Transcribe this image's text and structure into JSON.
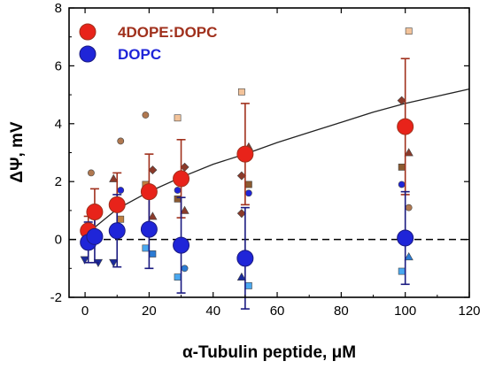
{
  "chart_data": {
    "type": "scatter",
    "xlabel": "α-Tubulin peptide, μM",
    "ylabel": "ΔΨ, mV",
    "xlim": [
      -5,
      120
    ],
    "ylim": [
      -2,
      8
    ],
    "xticks": [
      "0",
      "20",
      "40",
      "60",
      "80",
      "100",
      "120"
    ],
    "yticks": [
      "-2",
      "0",
      "2",
      "4",
      "6",
      "8"
    ],
    "grid": false,
    "legend_position": "top-left",
    "zero_line": {
      "y": 0,
      "style": "dashed"
    },
    "fit_curve": {
      "x": [
        0,
        10,
        20,
        30,
        40,
        50,
        60,
        70,
        80,
        90,
        100,
        110,
        120
      ],
      "y": [
        0.15,
        1.05,
        1.65,
        2.15,
        2.6,
        2.95,
        3.35,
        3.7,
        4.05,
        4.4,
        4.7,
        4.95,
        5.2
      ]
    },
    "series": [
      {
        "name": "4DOPE:DOPC",
        "color": "#e8231a",
        "edge": "#a0301c",
        "x": [
          1,
          3,
          10,
          20,
          30,
          50,
          100
        ],
        "y": [
          0.3,
          0.95,
          1.2,
          1.65,
          2.1,
          2.95,
          3.9
        ],
        "err": [
          0.5,
          0.8,
          1.1,
          1.3,
          1.35,
          1.75,
          2.35
        ]
      },
      {
        "name": "DOPC",
        "color": "#1f25d8",
        "edge": "#1a1a80",
        "x": [
          1,
          3,
          10,
          20,
          30,
          50,
          100
        ],
        "y": [
          -0.1,
          0.1,
          0.3,
          0.35,
          -0.2,
          -0.65,
          0.05
        ],
        "err": [
          0.7,
          0.9,
          1.25,
          1.35,
          1.65,
          1.75,
          1.6
        ]
      }
    ],
    "individual_points": [
      {
        "x": 3,
        "y": 2.3,
        "shape": "circle",
        "color": "#b07850"
      },
      {
        "x": 10,
        "y": 3.4,
        "shape": "circle",
        "color": "#b07850"
      },
      {
        "x": 10,
        "y": 2.1,
        "shape": "triangle",
        "color": "#8b3a2a"
      },
      {
        "x": 10,
        "y": 0.7,
        "shape": "square",
        "color": "#c08040"
      },
      {
        "x": 20,
        "y": 4.3,
        "shape": "circle",
        "color": "#b07850"
      },
      {
        "x": 20,
        "y": 2.4,
        "shape": "diamond",
        "color": "#8b3a2a"
      },
      {
        "x": 20,
        "y": 1.9,
        "shape": "square",
        "color": "#c08040"
      },
      {
        "x": 20,
        "y": 0.8,
        "shape": "triangle",
        "color": "#8b3a2a"
      },
      {
        "x": 30,
        "y": 4.2,
        "shape": "square",
        "color": "#f3c39a"
      },
      {
        "x": 30,
        "y": 2.5,
        "shape": "diamond",
        "color": "#8b3a2a"
      },
      {
        "x": 30,
        "y": 1.4,
        "shape": "square",
        "color": "#8b5a30"
      },
      {
        "x": 30,
        "y": 1.0,
        "shape": "triangle",
        "color": "#8b3a2a"
      },
      {
        "x": 50,
        "y": 5.1,
        "shape": "square",
        "color": "#f3c39a"
      },
      {
        "x": 50,
        "y": 3.2,
        "shape": "triangle",
        "color": "#8b3a2a"
      },
      {
        "x": 50,
        "y": 2.2,
        "shape": "diamond",
        "color": "#8b3a2a"
      },
      {
        "x": 50,
        "y": 1.9,
        "shape": "square",
        "color": "#8b5a30"
      },
      {
        "x": 50,
        "y": 0.9,
        "shape": "diamond",
        "color": "#8b3a2a"
      },
      {
        "x": 100,
        "y": 7.2,
        "shape": "square",
        "color": "#f3c39a"
      },
      {
        "x": 100,
        "y": 4.8,
        "shape": "diamond",
        "color": "#8b3a2a"
      },
      {
        "x": 100,
        "y": 3.0,
        "shape": "triangle",
        "color": "#8b3a2a"
      },
      {
        "x": 100,
        "y": 2.5,
        "shape": "square",
        "color": "#8b5a30"
      },
      {
        "x": 100,
        "y": 1.1,
        "shape": "circle",
        "color": "#b07850"
      },
      {
        "x": 1,
        "y": -0.7,
        "shape": "triangle-down",
        "color": "#1a2a9c"
      },
      {
        "x": 3,
        "y": -0.8,
        "shape": "triangle-down",
        "color": "#1a2a9c"
      },
      {
        "x": 3,
        "y": 0.3,
        "shape": "square",
        "color": "#2b7bd4"
      },
      {
        "x": 10,
        "y": 1.7,
        "shape": "circle",
        "color": "#1f25d8"
      },
      {
        "x": 10,
        "y": -0.8,
        "shape": "triangle-down",
        "color": "#1a2a9c"
      },
      {
        "x": 20,
        "y": 1.6,
        "shape": "circle",
        "color": "#1f25d8"
      },
      {
        "x": 20,
        "y": -0.3,
        "shape": "square",
        "color": "#4aa8f0"
      },
      {
        "x": 20,
        "y": -0.5,
        "shape": "square",
        "color": "#2b7bd4"
      },
      {
        "x": 30,
        "y": 1.7,
        "shape": "circle",
        "color": "#1f25d8"
      },
      {
        "x": 30,
        "y": -1.0,
        "shape": "circle",
        "color": "#2b7bd4"
      },
      {
        "x": 30,
        "y": -1.3,
        "shape": "square",
        "color": "#4aa8f0"
      },
      {
        "x": 50,
        "y": 1.6,
        "shape": "circle",
        "color": "#1f25d8"
      },
      {
        "x": 50,
        "y": -1.3,
        "shape": "triangle",
        "color": "#1a2a9c"
      },
      {
        "x": 50,
        "y": -1.6,
        "shape": "square",
        "color": "#4aa8f0"
      },
      {
        "x": 100,
        "y": 1.9,
        "shape": "circle",
        "color": "#1f25d8"
      },
      {
        "x": 100,
        "y": -0.6,
        "shape": "triangle",
        "color": "#2b7bd4"
      },
      {
        "x": 100,
        "y": -1.1,
        "shape": "square",
        "color": "#4aa8f0"
      }
    ]
  }
}
